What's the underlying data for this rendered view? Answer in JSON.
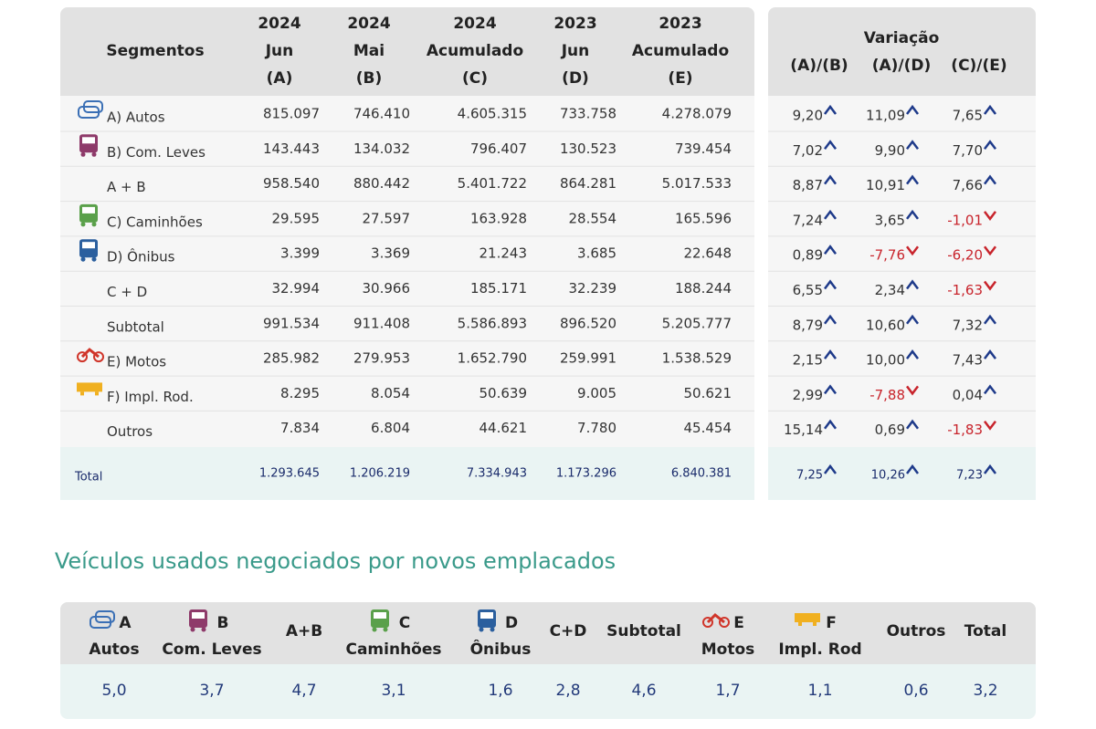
{
  "table": {
    "header": {
      "segment": "Segmentos",
      "columns": [
        [
          "2024",
          "Jun",
          "(A)"
        ],
        [
          "2024",
          "Mai",
          "(B)"
        ],
        [
          "2024",
          "Acumulado",
          "(C)"
        ],
        [
          "2023",
          "Jun",
          "(D)"
        ],
        [
          "2023",
          "Acumulado",
          "(E)"
        ]
      ],
      "variation_title": "Variação",
      "variation_columns": [
        "(A)/(B)",
        "(A)/(D)",
        "(C)/(E)"
      ]
    },
    "rows": [
      {
        "label": "A) Autos",
        "values": [
          "815.097",
          "746.410",
          "4.605.315",
          "733.758",
          "4.278.079"
        ],
        "variation": [
          "9,20",
          "11,09",
          "7,65"
        ]
      },
      {
        "label": "B) Com. Leves",
        "values": [
          "143.443",
          "134.032",
          "796.407",
          "130.523",
          "739.454"
        ],
        "variation": [
          "7,02",
          "9,90",
          "7,70"
        ]
      },
      {
        "label": "A + B",
        "values": [
          "958.540",
          "880.442",
          "5.401.722",
          "864.281",
          "5.017.533"
        ],
        "variation": [
          "8,87",
          "10,91",
          "7,66"
        ]
      },
      {
        "label": "C) Caminhões",
        "values": [
          "29.595",
          "27.597",
          "163.928",
          "28.554",
          "165.596"
        ],
        "variation": [
          "7,24",
          "3,65",
          "-1,01"
        ]
      },
      {
        "label": "D) Ônibus",
        "values": [
          "3.399",
          "3.369",
          "21.243",
          "3.685",
          "22.648"
        ],
        "variation": [
          "0,89",
          "-7,76",
          "-6,20"
        ]
      },
      {
        "label": "C + D",
        "values": [
          "32.994",
          "30.966",
          "185.171",
          "32.239",
          "188.244"
        ],
        "variation": [
          "6,55",
          "2,34",
          "-1,63"
        ]
      },
      {
        "label": "Subtotal",
        "values": [
          "991.534",
          "911.408",
          "5.586.893",
          "896.520",
          "5.205.777"
        ],
        "variation": [
          "8,79",
          "10,60",
          "7,32"
        ]
      },
      {
        "label": "E) Motos",
        "values": [
          "285.982",
          "279.953",
          "1.652.790",
          "259.991",
          "1.538.529"
        ],
        "variation": [
          "2,15",
          "10,00",
          "7,43"
        ]
      },
      {
        "label": "F) Impl. Rod.",
        "values": [
          "8.295",
          "8.054",
          "50.639",
          "9.005",
          "50.621"
        ],
        "variation": [
          "2,99",
          "-7,88",
          "0,04"
        ]
      },
      {
        "label": "Outros",
        "values": [
          "7.834",
          "6.804",
          "44.621",
          "7.780",
          "45.454"
        ],
        "variation": [
          "15,14",
          "0,69",
          "-1,83"
        ]
      }
    ],
    "total": {
      "label": "Total",
      "values": [
        "1.293.645",
        "1.206.219",
        "7.334.943",
        "1.173.296",
        "6.840.381"
      ],
      "variation": [
        "7,25",
        "10,26",
        "7,23"
      ]
    }
  },
  "used": {
    "title": "Veículos usados negociados por novos emplacados",
    "columns": [
      {
        "letter": "A",
        "label": "Autos",
        "value": "5,0"
      },
      {
        "letter": "B",
        "label": "Com. Leves",
        "value": "3,7"
      },
      {
        "label": "A+B",
        "value": "4,7"
      },
      {
        "letter": "C",
        "label": "Caminhões",
        "value": "3,1"
      },
      {
        "letter": "D",
        "label": "Ônibus",
        "value": "1,6"
      },
      {
        "label": "C+D",
        "value": "2,8"
      },
      {
        "label": "Subtotal",
        "value": "4,6"
      },
      {
        "letter": "E",
        "label": "Motos",
        "value": "1,7"
      },
      {
        "letter": "F",
        "label": "Impl. Rod",
        "value": "1,1"
      },
      {
        "label": "Outros",
        "value": "0,6"
      },
      {
        "label": "Total",
        "value": "3,2"
      }
    ]
  }
}
